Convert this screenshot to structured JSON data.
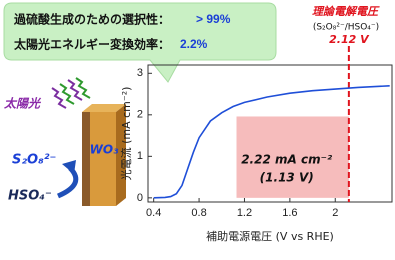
{
  "chart_data": {
    "type": "line",
    "x_label": "補助電源電圧 (V vs RHE)",
    "y_label": "光電流 (mA cm⁻²)",
    "x": [
      0.4,
      0.5,
      0.55,
      0.6,
      0.65,
      0.7,
      0.75,
      0.8,
      0.9,
      1.0,
      1.1,
      1.2,
      1.4,
      1.6,
      1.8,
      2.0,
      2.2,
      2.48
    ],
    "values": [
      0,
      0.01,
      0.03,
      0.1,
      0.3,
      0.7,
      1.1,
      1.45,
      1.85,
      2.05,
      2.2,
      2.3,
      2.43,
      2.52,
      2.58,
      2.62,
      2.66,
      2.7
    ],
    "color": "#1f4fd8",
    "xlim": [
      0.35,
      2.5
    ],
    "ylim": [
      -0.1,
      3.2
    ],
    "xticks": [
      0.4,
      0.8,
      1.2,
      1.6,
      2.0
    ],
    "yticks": [
      0,
      1,
      2,
      3
    ],
    "highlight": {
      "x": [
        1.13,
        2.12
      ],
      "y": [
        0,
        1.96
      ],
      "color": "#f6bcbc",
      "label": "2.22 mA cm⁻²",
      "sublabel": "(1.13 V)"
    },
    "reference_line": {
      "x": 2.12,
      "color": "#e0141e",
      "label": "2.12 V",
      "title": "理論電解電圧",
      "subtitle": "(S₂O₈²⁻/HSO₄⁻)"
    }
  },
  "callout": {
    "line1": "過硫酸生成のための選択性：",
    "value1": "> 99%",
    "line2": "太陽光エネルギー変換効率：",
    "value2": "2.2%"
  },
  "illustration": {
    "sunlight": "太陽光",
    "electrode": "WO₃",
    "product": "S₂O₈²⁻",
    "reactant": "HSO₄⁻"
  }
}
